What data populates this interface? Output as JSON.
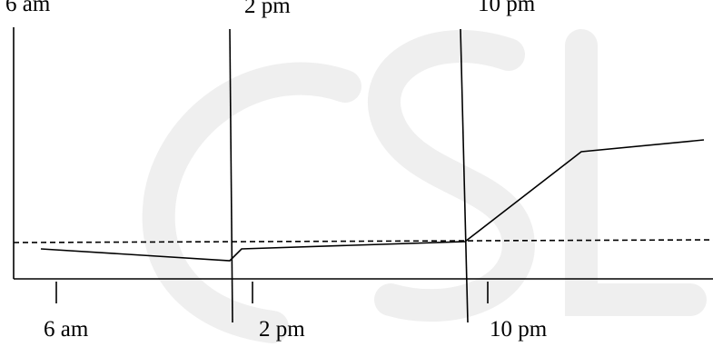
{
  "labels": {
    "top": [
      "6 am",
      "2 pm",
      "10 pm"
    ],
    "bottom": [
      "6 am",
      "2 pm",
      "10 pm"
    ]
  },
  "watermark": "CSL",
  "colors": {
    "line": "#000000",
    "watermark": "#efefef",
    "background": "#ffffff"
  }
}
